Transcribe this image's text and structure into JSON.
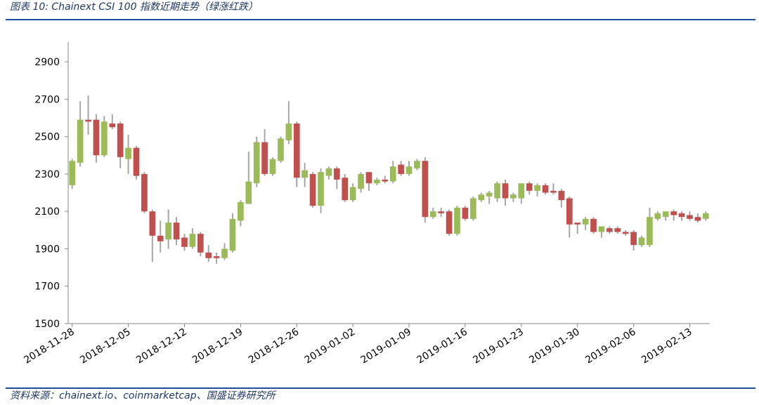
{
  "chart_data": {
    "type": "candlestick",
    "title": "图表 10:  Chainext CSI 100 指数近期走势（绿涨红跌）",
    "source": "资料来源：chainext.io、coinmarketcap、国盛证券研究所",
    "x": [
      "2018-11-28",
      "2018-11-29",
      "2018-11-30",
      "2018-12-01",
      "2018-12-02",
      "2018-12-03",
      "2018-12-04",
      "2018-12-05",
      "2018-12-06",
      "2018-12-07",
      "2018-12-08",
      "2018-12-09",
      "2018-12-10",
      "2018-12-11",
      "2018-12-12",
      "2018-12-13",
      "2018-12-14",
      "2018-12-15",
      "2018-12-16",
      "2018-12-17",
      "2018-12-18",
      "2018-12-19",
      "2018-12-20",
      "2018-12-21",
      "2018-12-22",
      "2018-12-23",
      "2018-12-24",
      "2018-12-25",
      "2018-12-26",
      "2018-12-27",
      "2018-12-28",
      "2018-12-29",
      "2018-12-30",
      "2018-12-31",
      "2019-01-01",
      "2019-01-02",
      "2019-01-03",
      "2019-01-04",
      "2019-01-05",
      "2019-01-06",
      "2019-01-07",
      "2019-01-08",
      "2019-01-09",
      "2019-01-10",
      "2019-01-11",
      "2019-01-12",
      "2019-01-13",
      "2019-01-14",
      "2019-01-15",
      "2019-01-16",
      "2019-01-17",
      "2019-01-18",
      "2019-01-19",
      "2019-01-20",
      "2019-01-21",
      "2019-01-22",
      "2019-01-23",
      "2019-01-24",
      "2019-01-25",
      "2019-01-26",
      "2019-01-27",
      "2019-01-28",
      "2019-01-29",
      "2019-01-30",
      "2019-01-31",
      "2019-02-01",
      "2019-02-02",
      "2019-02-03",
      "2019-02-04",
      "2019-02-05",
      "2019-02-06",
      "2019-02-07",
      "2019-02-08",
      "2019-02-09",
      "2019-02-10",
      "2019-02-11",
      "2019-02-12",
      "2019-02-13",
      "2019-02-14",
      "2019-02-15"
    ],
    "open": [
      2240,
      2360,
      2590,
      2590,
      2400,
      2570,
      2570,
      2380,
      2440,
      2300,
      2100,
      1970,
      1950,
      2040,
      1960,
      1910,
      1980,
      1880,
      1860,
      1850,
      1890,
      2050,
      2140,
      2250,
      2470,
      2300,
      2370,
      2480,
      2570,
      2280,
      2300,
      2130,
      2290,
      2330,
      2280,
      2160,
      2220,
      2310,
      2250,
      2270,
      2260,
      2350,
      2300,
      2330,
      2370,
      2070,
      2100,
      2100,
      1980,
      2120,
      2060,
      2160,
      2180,
      2170,
      2250,
      2170,
      2170,
      2250,
      2210,
      2240,
      2210,
      2210,
      2170,
      2040,
      2030,
      2060,
      1990,
      2010,
      2010,
      1990,
      1990,
      1920,
      1920,
      2060,
      2070,
      2100,
      2090,
      2080,
      2070,
      2060
    ],
    "high": [
      2380,
      2690,
      2720,
      2620,
      2610,
      2620,
      2580,
      2510,
      2450,
      2310,
      2110,
      2050,
      2110,
      2070,
      1980,
      2010,
      1990,
      1920,
      1880,
      1930,
      2090,
      2160,
      2420,
      2500,
      2540,
      2390,
      2500,
      2690,
      2580,
      2360,
      2310,
      2330,
      2340,
      2340,
      2300,
      2250,
      2310,
      2310,
      2280,
      2290,
      2370,
      2370,
      2370,
      2380,
      2390,
      2120,
      2120,
      2110,
      2130,
      2130,
      2180,
      2200,
      2210,
      2260,
      2270,
      2200,
      2250,
      2260,
      2250,
      2250,
      2250,
      2220,
      2180,
      2040,
      2070,
      2070,
      2020,
      2020,
      2020,
      2000,
      2000,
      1970,
      2120,
      2100,
      2100,
      2110,
      2100,
      2100,
      2090,
      2100
    ],
    "low": [
      2220,
      2340,
      2510,
      2360,
      2390,
      2540,
      2330,
      2300,
      2270,
      2090,
      1830,
      1880,
      1900,
      1920,
      1890,
      1900,
      1860,
      1830,
      1820,
      1840,
      1880,
      2020,
      2140,
      2230,
      2290,
      2290,
      2360,
      2460,
      2230,
      2230,
      2120,
      2090,
      2270,
      2220,
      2150,
      2150,
      2200,
      2210,
      2240,
      2250,
      2250,
      2290,
      2290,
      2320,
      2040,
      2060,
      2070,
      1970,
      1970,
      2050,
      2050,
      2150,
      2140,
      2150,
      2130,
      2150,
      2140,
      2190,
      2180,
      2190,
      2190,
      2120,
      1960,
      1980,
      2000,
      1980,
      1960,
      1980,
      1980,
      1970,
      1890,
      1910,
      1910,
      2050,
      2050,
      2050,
      2050,
      2050,
      2040,
      2050
    ],
    "close": [
      2370,
      2590,
      2580,
      2400,
      2580,
      2550,
      2390,
      2440,
      2290,
      2100,
      1970,
      1940,
      2040,
      1950,
      1910,
      1980,
      1880,
      1850,
      1850,
      1900,
      2060,
      2150,
      2260,
      2470,
      2300,
      2380,
      2490,
      2570,
      2280,
      2320,
      2130,
      2310,
      2330,
      2270,
      2160,
      2230,
      2300,
      2250,
      2270,
      2260,
      2340,
      2300,
      2340,
      2370,
      2070,
      2100,
      2090,
      1980,
      2120,
      2060,
      2170,
      2190,
      2200,
      2250,
      2170,
      2190,
      2250,
      2210,
      2240,
      2200,
      2200,
      2160,
      2030,
      2030,
      2060,
      1990,
      2020,
      1990,
      1990,
      1980,
      1920,
      1960,
      2070,
      2090,
      2100,
      2080,
      2070,
      2060,
      2050,
      2090
    ],
    "up_color": "#9bbb59",
    "down_color": "#c0504d",
    "wick_color": "#a6a6a6",
    "ylim": [
      1500,
      2900
    ],
    "yticks": [
      1500,
      1700,
      1900,
      2100,
      2300,
      2500,
      2700,
      2900
    ],
    "xticks": [
      "2018-11-28",
      "2018-12-05",
      "2018-12-12",
      "2018-12-19",
      "2018-12-26",
      "2019-01-02",
      "2019-01-09",
      "2019-01-16",
      "2019-01-23",
      "2019-01-30",
      "2019-02-06",
      "2019-02-13"
    ]
  }
}
